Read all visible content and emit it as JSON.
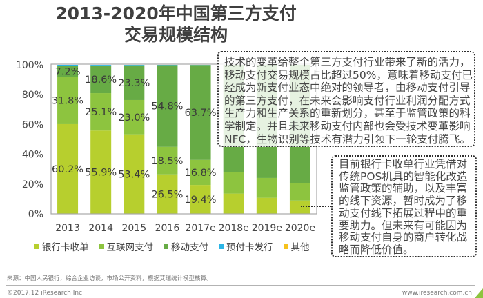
{
  "title": {
    "line1": "2013-2020年中国第三方支付",
    "line2": "交易规模结构"
  },
  "chart_data": {
    "type": "bar",
    "stacked": true,
    "title": "2013-2020年中国第三方支付交易规模结构",
    "xlabel": "",
    "ylabel": "",
    "ylim": [
      0,
      100
    ],
    "grid": false,
    "legend_position": "bottom",
    "categories": [
      "2013",
      "2014",
      "2015",
      "2016",
      "2017e",
      "2018e",
      "2019e",
      "2020e"
    ],
    "yticks": [
      "0%",
      "20%",
      "40%",
      "60%",
      "80%",
      "100%"
    ],
    "series": [
      {
        "name": "银行卡收单",
        "color": "#b7cf2e",
        "values": [
          60.2,
          55.9,
          53.4,
          26.5,
          19.4,
          13.6,
          10.8,
          8.9
        ],
        "labels": [
          "60.2%",
          "55.9%",
          "53.4%",
          "26.5%",
          "19.4%",
          "",
          "",
          ""
        ]
      },
      {
        "name": "互联网支付",
        "color": "#8dc43f",
        "values": [
          31.8,
          25.1,
          23.0,
          18.5,
          16.8,
          14.2,
          13.3,
          11.9
        ],
        "labels": [
          "31.8%",
          "25.1%",
          "23.0%",
          "18.5%",
          "16.8%",
          "",
          "",
          ""
        ]
      },
      {
        "name": "移动支付",
        "color": "#67ab45",
        "values": [
          7.2,
          18.6,
          23.3,
          54.8,
          63.7,
          72.2,
          75.9,
          79.2
        ],
        "labels": [
          "7.2%",
          "18.6%",
          "23.3%",
          "54.8%",
          "63.7%",
          "",
          "",
          ""
        ]
      },
      {
        "name": "预付卡发行",
        "color": "#2bb5e6",
        "values": [
          0.8,
          0.4,
          0.3,
          0.2,
          0.1,
          0,
          0,
          0
        ],
        "labels": [
          "",
          "",
          "",
          "",
          "",
          "",
          "",
          ""
        ]
      },
      {
        "name": "其他",
        "color": "#f6c21c",
        "values": [
          0,
          0,
          0,
          0,
          0,
          0,
          0,
          0
        ],
        "labels": [
          "",
          "",
          "",
          "",
          "",
          "",
          "",
          ""
        ]
      }
    ]
  },
  "callouts": [
    {
      "lines": [
        "技术的变革给整个第三方支付行业带来了新的活力，",
        "移动支付交易规模占比超过50%，意味着移动支付已",
        "经成为新支付业态中绝对的领导者，由移动支付引导",
        "的第三方支付，在未来会影响支付行业利润分配方式",
        "生产力和生产关系的重新划分，甚至于监管政策的科",
        "学制定。并且未来移动支付内部也会受技术变革影响",
        "NFC，生物识别等技术有潜力引领下一轮支付腾飞。"
      ]
    },
    {
      "lines": [
        "目前银行卡收单行业凭借对",
        "传统POS机具的智能化改造",
        "监管政策的辅助，以及丰富",
        "的线下资源，暂时成为了移",
        "动支付线下拓展过程中的重",
        "要助力。但未来有可能因为",
        "移动支付自身的商户转化战",
        "略而降低价值。"
      ]
    }
  ],
  "footer": {
    "source": "来源：中国人民银行，综合企业访谈，市场公开资料，根据艾瑞统计模型核算。",
    "copyright": "©2017.12 iResearch Inc",
    "website": "www.iresearch.com.cn"
  }
}
